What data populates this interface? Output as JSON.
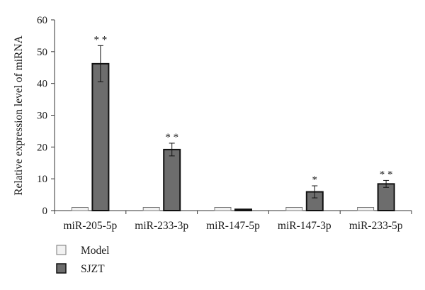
{
  "chart_data": {
    "type": "bar",
    "title": "",
    "xlabel": "",
    "ylabel": "Relative expression level of miRNA",
    "ylim": [
      0,
      60
    ],
    "yticks": [
      0,
      10,
      20,
      30,
      40,
      50,
      60
    ],
    "grid": false,
    "legend_position": "bottom-left",
    "categories": [
      "miR-205-5p",
      "miR-233-3p",
      "miR-147-5p",
      "miR-147-3p",
      "miR-233-5p"
    ],
    "series": [
      {
        "name": "Model",
        "color": "#f2f2f2",
        "values": [
          1,
          1,
          1,
          1,
          1
        ],
        "errors": [
          0,
          0,
          0,
          0,
          0
        ]
      },
      {
        "name": "SJZT",
        "color": "#6d6d6d",
        "values": [
          46.2,
          19.2,
          0.4,
          5.9,
          8.4
        ],
        "errors": [
          5.7,
          2.0,
          0,
          1.9,
          1.1
        ]
      }
    ],
    "significance": [
      "**",
      "**",
      "",
      "*",
      "**"
    ]
  }
}
